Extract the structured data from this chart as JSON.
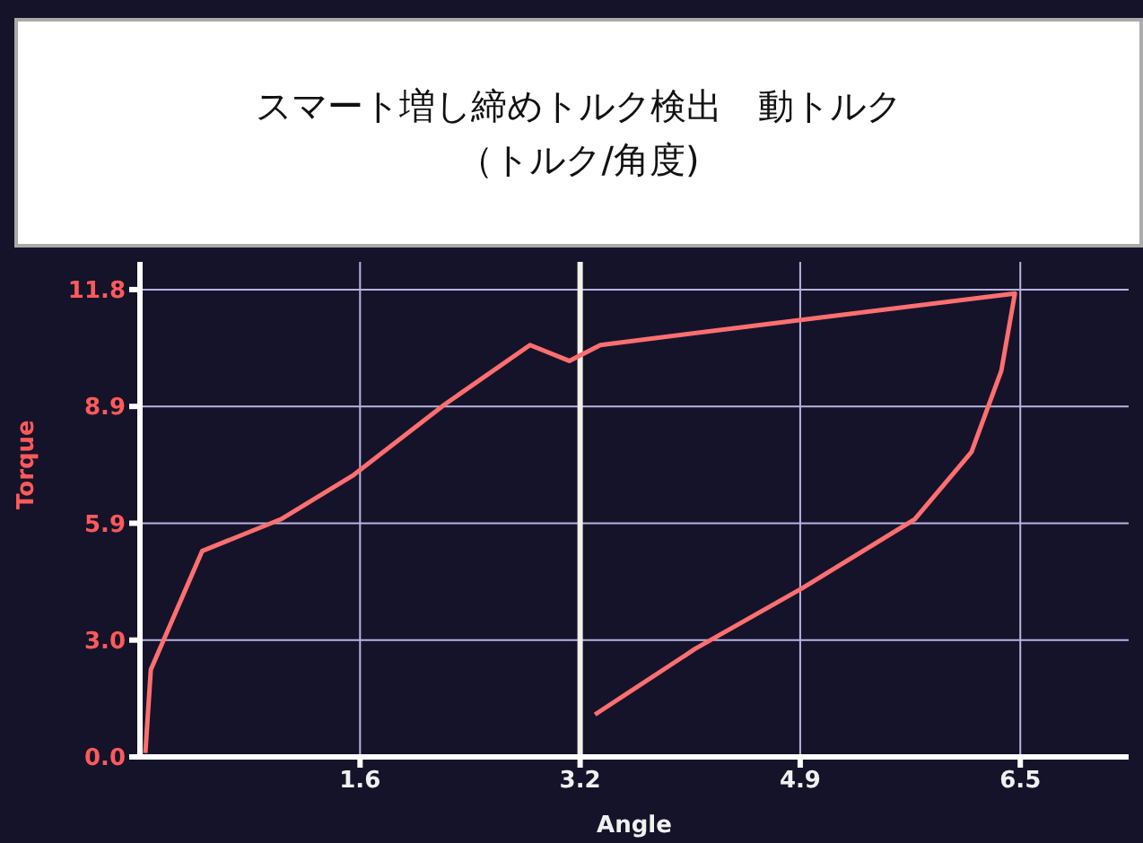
{
  "chart_data": {
    "type": "line",
    "title": "スマート増し締めトルク検出　動トルク",
    "subtitle": "（トルク/角度)",
    "xlabel": "Angle",
    "ylabel": "Torque",
    "series": [
      {
        "color": "#ff6f6f",
        "x": [
          0.04,
          0.08,
          0.46,
          1.04,
          1.57,
          2.25,
          2.88,
          3.17,
          3.4,
          4.56,
          6.46,
          6.36,
          6.14,
          5.72,
          4.89,
          4.1,
          3.36
        ],
        "values": [
          0.1,
          2.2,
          5.2,
          6.0,
          7.1,
          8.9,
          10.4,
          10.0,
          10.4,
          10.9,
          11.7,
          9.75,
          7.7,
          6.0,
          4.26,
          2.73,
          1.07
        ]
      }
    ],
    "xlim": [
      0,
      7.3
    ],
    "ylim": [
      0,
      12.5
    ],
    "xticks": [
      {
        "value": 1.625,
        "label": "1.6"
      },
      {
        "value": 3.25,
        "label": "3.2"
      },
      {
        "value": 4.875,
        "label": "4.9"
      },
      6.5
    ],
    "yticks": [
      {
        "value": 0,
        "label": "0.0"
      },
      {
        "value": 2.95,
        "label": "3.0"
      },
      5.9,
      {
        "value": 8.85,
        "label": "8.9"
      },
      11.8
    ],
    "ref_lines": [
      {
        "axis": "x",
        "value": 3.25,
        "color": "#f4f0e6"
      }
    ],
    "grid": true,
    "marker": "none",
    "line_style": "solid"
  }
}
